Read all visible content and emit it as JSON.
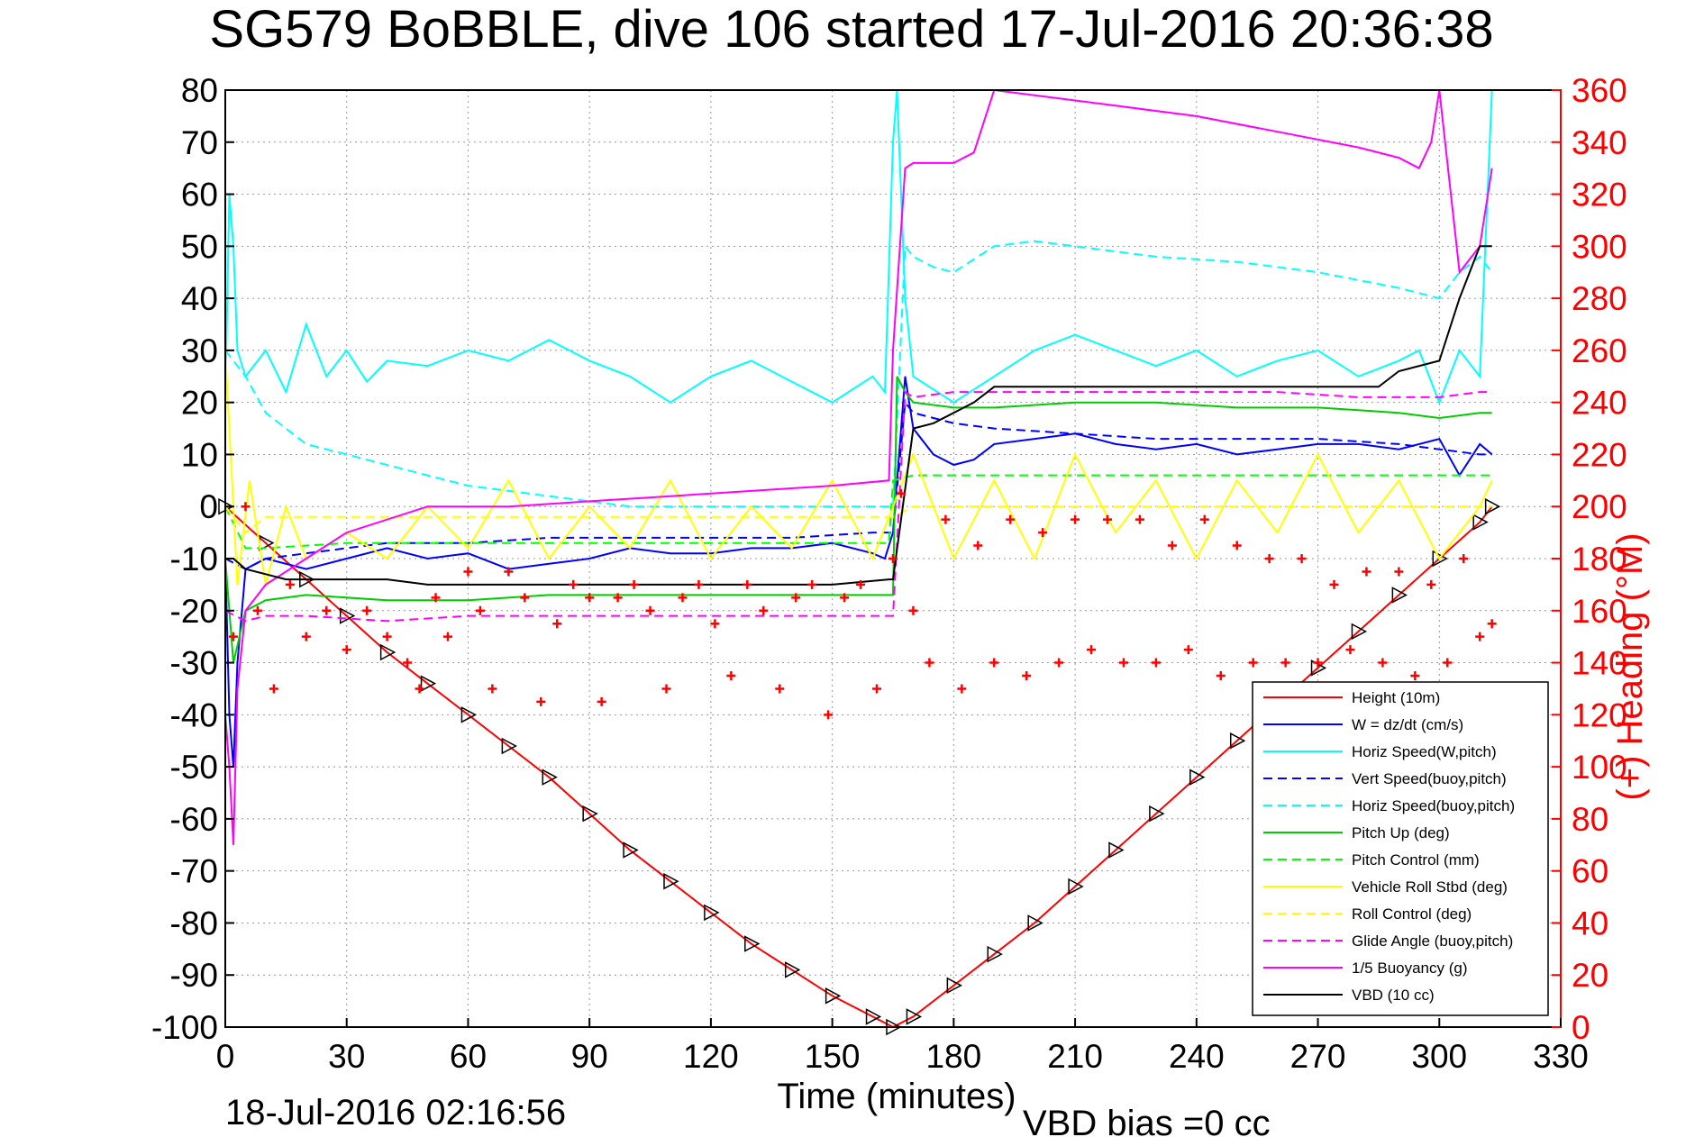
{
  "chart_data": {
    "type": "line",
    "title": "SG579 BoBBLE, dive 106 started 17-Jul-2016 20:36:38",
    "xlabel": "Time (minutes)",
    "ylabel_right": "(+) Heading (°M)",
    "xlim": [
      0,
      330
    ],
    "ylim": [
      -100,
      80
    ],
    "ylim_right": [
      0,
      360
    ],
    "x_ticks": [
      "0",
      "30",
      "60",
      "90",
      "120",
      "150",
      "180",
      "210",
      "240",
      "270",
      "300",
      "330"
    ],
    "y_ticks": [
      "80",
      "70",
      "60",
      "50",
      "40",
      "30",
      "20",
      "10",
      "0",
      "-10",
      "-20",
      "-30",
      "-40",
      "-50",
      "-60",
      "-70",
      "-80",
      "-90",
      "-100"
    ],
    "y_ticks_right": [
      "360",
      "340",
      "320",
      "300",
      "280",
      "260",
      "240",
      "220",
      "200",
      "180",
      "160",
      "140",
      "120",
      "100",
      "80",
      "60",
      "40",
      "20",
      "0"
    ],
    "grid": true,
    "legend_position": "bottom-right",
    "footer_date": "18-Jul-2016 02:16:56",
    "footer_note": "VBD bias =0 cc",
    "series": [
      {
        "name": "Height (10m)",
        "color": "#ff0000",
        "style": "solid",
        "x": [
          0,
          10,
          20,
          30,
          40,
          50,
          60,
          70,
          80,
          90,
          100,
          110,
          120,
          130,
          140,
          150,
          160,
          165,
          170,
          180,
          190,
          200,
          210,
          220,
          230,
          240,
          250,
          260,
          270,
          280,
          290,
          300,
          310,
          313
        ],
        "y": [
          0,
          -7,
          -14,
          -21,
          -28,
          -34,
          -40,
          -46,
          -52,
          -59,
          -66,
          -72,
          -78,
          -84,
          -89,
          -94,
          -98,
          -100,
          -98,
          -92,
          -86,
          -80,
          -73,
          -66,
          -59,
          -52,
          -45,
          -38,
          -31,
          -24,
          -17,
          -10,
          -3,
          0
        ]
      },
      {
        "name": "W = dz/dt (cm/s)",
        "color": "#0000ff",
        "style": "solid",
        "x": [
          0,
          1,
          2,
          3,
          5,
          10,
          20,
          30,
          40,
          50,
          60,
          70,
          80,
          90,
          100,
          110,
          120,
          130,
          140,
          150,
          160,
          163,
          165,
          168,
          170,
          175,
          180,
          185,
          190,
          200,
          210,
          220,
          230,
          240,
          250,
          260,
          270,
          280,
          290,
          300,
          305,
          310,
          313
        ],
        "y": [
          -10,
          -40,
          -50,
          -30,
          -12,
          -10,
          -12,
          -10,
          -8,
          -10,
          -9,
          -12,
          -11,
          -10,
          -8,
          -9,
          -9,
          -8,
          -8,
          -7,
          -9,
          -10,
          -5,
          25,
          15,
          10,
          8,
          9,
          12,
          13,
          14,
          12,
          11,
          12,
          10,
          11,
          12,
          12,
          11,
          13,
          6,
          12,
          10
        ]
      },
      {
        "name": "Horiz Speed(W,pitch)",
        "color": "#00ffff",
        "style": "solid",
        "x": [
          0,
          1,
          2,
          3,
          5,
          10,
          15,
          20,
          25,
          30,
          35,
          40,
          50,
          60,
          70,
          80,
          90,
          100,
          110,
          120,
          130,
          140,
          150,
          160,
          163,
          165,
          166,
          168,
          170,
          180,
          190,
          200,
          210,
          220,
          230,
          240,
          250,
          260,
          270,
          280,
          290,
          295,
          300,
          305,
          310,
          313
        ],
        "y": [
          20,
          60,
          50,
          30,
          25,
          30,
          22,
          35,
          25,
          30,
          24,
          28,
          27,
          30,
          28,
          32,
          28,
          25,
          20,
          25,
          28,
          24,
          20,
          25,
          22,
          70,
          80,
          40,
          25,
          20,
          25,
          30,
          33,
          30,
          27,
          30,
          25,
          28,
          30,
          25,
          28,
          30,
          20,
          30,
          25,
          80
        ]
      },
      {
        "name": "Vert Speed(buoy,pitch)",
        "color": "#0000ff",
        "style": "dashed",
        "x": [
          0,
          5,
          10,
          20,
          30,
          40,
          60,
          80,
          100,
          120,
          140,
          160,
          165,
          168,
          170,
          180,
          190,
          210,
          230,
          250,
          270,
          290,
          300,
          310,
          313
        ],
        "y": [
          -10,
          -12,
          -10,
          -9,
          -8,
          -7,
          -7,
          -6,
          -6,
          -6,
          -6,
          -5,
          -5,
          20,
          18,
          16,
          15,
          14,
          13,
          13,
          13,
          12,
          11,
          10,
          10
        ]
      },
      {
        "name": "Horiz Speed(buoy,pitch)",
        "color": "#00ffff",
        "style": "dashed",
        "x": [
          0,
          5,
          10,
          20,
          30,
          40,
          50,
          60,
          70,
          80,
          90,
          100,
          120,
          140,
          160,
          165,
          168,
          170,
          175,
          180,
          190,
          200,
          210,
          230,
          250,
          270,
          290,
          300,
          305,
          310,
          313
        ],
        "y": [
          30,
          25,
          18,
          12,
          10,
          8,
          6,
          4,
          3,
          2,
          1,
          0,
          0,
          0,
          0,
          0,
          50,
          48,
          46,
          45,
          50,
          51,
          50,
          48,
          47,
          45,
          42,
          40,
          45,
          48,
          45
        ]
      },
      {
        "name": "Pitch Up (deg)",
        "color": "#00cc00",
        "style": "solid",
        "x": [
          0,
          2,
          5,
          10,
          20,
          40,
          60,
          80,
          100,
          120,
          140,
          160,
          165,
          166,
          168,
          170,
          180,
          190,
          210,
          230,
          250,
          270,
          290,
          300,
          310,
          313
        ],
        "y": [
          -10,
          -30,
          -20,
          -18,
          -17,
          -18,
          -18,
          -17,
          -17,
          -17,
          -17,
          -17,
          -17,
          25,
          22,
          20,
          19,
          19,
          20,
          20,
          19,
          19,
          18,
          17,
          18,
          18
        ]
      },
      {
        "name": "Pitch Control (mm)",
        "color": "#00ff00",
        "style": "dashed",
        "x": [
          0,
          5,
          10,
          30,
          60,
          90,
          120,
          150,
          164,
          165,
          170,
          180,
          200,
          230,
          260,
          290,
          300,
          313
        ],
        "y": [
          0,
          -8,
          -8,
          -7,
          -7,
          -7,
          -7,
          -7,
          -7,
          5,
          6,
          6,
          6,
          6,
          6,
          6,
          6,
          6
        ]
      },
      {
        "name": "Vehicle Roll Stbd (deg)",
        "color": "#ffff00",
        "style": "solid",
        "x": [
          0,
          3,
          6,
          10,
          15,
          20,
          30,
          40,
          50,
          60,
          70,
          80,
          90,
          100,
          110,
          120,
          130,
          140,
          150,
          160,
          165,
          170,
          180,
          190,
          200,
          210,
          220,
          230,
          240,
          250,
          260,
          270,
          280,
          290,
          300,
          310,
          313
        ],
        "y": [
          30,
          -15,
          5,
          -15,
          0,
          -10,
          -5,
          -10,
          0,
          -8,
          5,
          -10,
          0,
          -8,
          5,
          -10,
          0,
          -8,
          5,
          -10,
          0,
          10,
          -10,
          5,
          -10,
          10,
          -5,
          5,
          -10,
          5,
          -5,
          10,
          -5,
          5,
          -10,
          0,
          5
        ]
      },
      {
        "name": "Roll Control (deg)",
        "color": "#ffff00",
        "style": "dashed",
        "x": [
          0,
          5,
          10,
          30,
          60,
          90,
          120,
          150,
          165,
          170,
          190,
          220,
          250,
          280,
          310,
          313
        ],
        "y": [
          0,
          -5,
          -2,
          -2,
          -2,
          -2,
          -2,
          -2,
          -2,
          0,
          0,
          0,
          0,
          0,
          0,
          0
        ]
      },
      {
        "name": "Glide Angle (buoy,pitch)",
        "color": "#ff00ff",
        "style": "dashed",
        "x": [
          0,
          5,
          10,
          20,
          40,
          60,
          80,
          100,
          120,
          140,
          160,
          165,
          168,
          170,
          180,
          200,
          220,
          240,
          260,
          280,
          300,
          310,
          313
        ],
        "y": [
          -20,
          -22,
          -21,
          -21,
          -22,
          -21,
          -21,
          -21,
          -21,
          -21,
          -21,
          -21,
          22,
          21,
          22,
          22,
          22,
          22,
          22,
          21,
          21,
          22,
          22
        ]
      },
      {
        "name": "1/5 Buoyancy (g)",
        "color": "#ff00ff",
        "style": "solid",
        "x": [
          0,
          1,
          2,
          3,
          5,
          10,
          20,
          30,
          50,
          70,
          90,
          110,
          130,
          150,
          164,
          165,
          168,
          170,
          180,
          185,
          190,
          200,
          220,
          240,
          260,
          280,
          290,
          295,
          298,
          300,
          305,
          310,
          313
        ],
        "y": [
          -40,
          -50,
          -65,
          -35,
          -20,
          -15,
          -10,
          -5,
          0,
          0,
          1,
          2,
          3,
          4,
          5,
          30,
          65,
          66,
          66,
          68,
          80,
          79,
          77,
          75,
          72,
          69,
          67,
          65,
          70,
          80,
          45,
          50,
          65
        ]
      },
      {
        "name": "VBD (10 cc)",
        "color": "#000000",
        "style": "solid",
        "x": [
          0,
          2,
          5,
          10,
          15,
          20,
          40,
          50,
          100,
          150,
          164,
          165,
          170,
          175,
          180,
          185,
          190,
          200,
          230,
          260,
          280,
          285,
          290,
          300,
          305,
          310,
          313
        ],
        "y": [
          -10,
          -10,
          -12,
          -13,
          -14,
          -14,
          -14,
          -15,
          -15,
          -15,
          -14,
          -14,
          15,
          16,
          18,
          20,
          23,
          23,
          23,
          23,
          23,
          23,
          26,
          28,
          40,
          50,
          50
        ]
      }
    ],
    "heading": {
      "name": "(+) Heading (°M)",
      "color": "#ff0000",
      "marker": "+",
      "x": [
        2,
        5,
        8,
        12,
        16,
        20,
        25,
        30,
        35,
        40,
        45,
        48,
        52,
        55,
        60,
        63,
        66,
        70,
        74,
        78,
        82,
        86,
        90,
        93,
        97,
        101,
        105,
        109,
        113,
        117,
        121,
        125,
        129,
        133,
        137,
        141,
        145,
        149,
        153,
        157,
        161,
        165,
        167,
        170,
        174,
        178,
        182,
        186,
        190,
        194,
        198,
        202,
        206,
        210,
        214,
        218,
        222,
        226,
        230,
        234,
        238,
        242,
        246,
        250,
        254,
        258,
        262,
        266,
        270,
        274,
        278,
        282,
        286,
        290,
        294,
        298,
        302,
        306,
        310,
        313
      ],
      "y": [
        150,
        200,
        160,
        130,
        170,
        150,
        160,
        145,
        160,
        150,
        140,
        130,
        165,
        150,
        175,
        160,
        130,
        175,
        165,
        125,
        155,
        170,
        165,
        125,
        165,
        170,
        160,
        130,
        165,
        170,
        155,
        135,
        170,
        160,
        130,
        165,
        170,
        120,
        165,
        170,
        130,
        180,
        205,
        160,
        140,
        195,
        130,
        185,
        140,
        195,
        135,
        190,
        140,
        195,
        145,
        195,
        140,
        195,
        140,
        185,
        145,
        195,
        135,
        185,
        140,
        180,
        140,
        180,
        140,
        170,
        145,
        175,
        140,
        175,
        135,
        170,
        140,
        180,
        150,
        155
      ]
    }
  },
  "legend": {
    "items": [
      {
        "label": "Height (10m)",
        "color": "#ff0000",
        "style": "solid"
      },
      {
        "label": "W = dz/dt (cm/s)",
        "color": "#0000ff",
        "style": "solid"
      },
      {
        "label": "Horiz Speed(W,pitch)",
        "color": "#00ffff",
        "style": "solid"
      },
      {
        "label": "Vert Speed(buoy,pitch)",
        "color": "#0000ff",
        "style": "dashed"
      },
      {
        "label": "Horiz Speed(buoy,pitch)",
        "color": "#00ffff",
        "style": "dashed"
      },
      {
        "label": "Pitch Up (deg)",
        "color": "#00cc00",
        "style": "solid"
      },
      {
        "label": "Pitch Control (mm)",
        "color": "#00ff00",
        "style": "dashed"
      },
      {
        "label": "Vehicle Roll Stbd (deg)",
        "color": "#ffff00",
        "style": "solid"
      },
      {
        "label": "Roll Control (deg)",
        "color": "#ffff00",
        "style": "dashed"
      },
      {
        "label": "Glide Angle (buoy,pitch)",
        "color": "#ff00ff",
        "style": "dashed"
      },
      {
        "label": "1/5 Buoyancy (g)",
        "color": "#ff00ff",
        "style": "solid"
      },
      {
        "label": "VBD (10 cc)",
        "color": "#000000",
        "style": "solid"
      }
    ]
  }
}
